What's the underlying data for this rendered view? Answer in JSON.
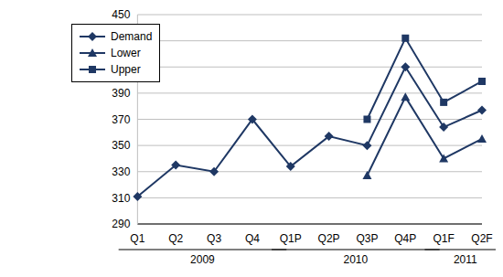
{
  "chart_data": {
    "type": "line",
    "categories": [
      "Q1",
      "Q2",
      "Q3",
      "Q4",
      "Q1P",
      "Q2P",
      "Q3P",
      "Q4P",
      "Q1F",
      "Q2F"
    ],
    "category_groups": [
      {
        "label": "2009",
        "count": 4
      },
      {
        "label": "2010",
        "count": 4
      },
      {
        "label": "2011",
        "count": 2
      }
    ],
    "series": [
      {
        "name": "Demand",
        "color": "#1f3864",
        "marker": "diamond",
        "values": [
          311,
          335,
          330,
          370,
          334,
          357,
          350,
          410,
          364,
          377
        ]
      },
      {
        "name": "Lower",
        "color": "#1f3864",
        "marker": "triangle",
        "values": [
          null,
          null,
          null,
          null,
          null,
          null,
          327,
          387,
          340,
          355
        ]
      },
      {
        "name": "Upper",
        "color": "#1f3864",
        "marker": "square",
        "values": [
          null,
          null,
          null,
          null,
          null,
          null,
          370,
          432,
          383,
          399
        ]
      }
    ],
    "ylim": [
      290,
      450
    ],
    "yticks": [
      290,
      310,
      330,
      350,
      370,
      390,
      410,
      430,
      450
    ],
    "grid": true,
    "legend": "top-left"
  }
}
